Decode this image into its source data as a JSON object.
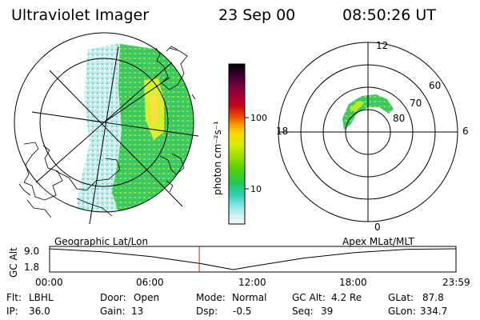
{
  "header": {
    "instrument": "Ultraviolet Imager",
    "date": "23 Sep 00",
    "time": "08:50:26 UT"
  },
  "left_panel": {
    "caption": "Geographic Lat/Lon"
  },
  "right_panel": {
    "caption": "Apex MLat/MLT",
    "mlt_labels": {
      "top": "12",
      "left": "18",
      "right": "6",
      "bottom": "0"
    },
    "lat_labels": [
      "60",
      "70",
      "80"
    ]
  },
  "colorbar": {
    "unit_label": "photon cm⁻²s⁻¹",
    "ticks": [
      "100",
      "10"
    ],
    "colors": [
      "#000000",
      "#3d0033",
      "#8a0040",
      "#c8001e",
      "#e85000",
      "#ff9a00",
      "#ffd400",
      "#d8ee00",
      "#9ae000",
      "#55d200",
      "#1ec850",
      "#30d2b8",
      "#8ae6e6",
      "#d4f2f2",
      "#f4f4f4"
    ]
  },
  "altitude_plot": {
    "ylabel": "GC Alt",
    "yticks": [
      "9.0",
      "1.8"
    ],
    "xticks": [
      "00:00",
      "06:00",
      "12:00",
      "18:00",
      "23:59"
    ],
    "current_time_marker": "08:50",
    "marker_color": "#cc2222",
    "chart_data": {
      "type": "line",
      "xlabel": "",
      "ylabel": "GC Alt",
      "x": [
        "00:00",
        "03:00",
        "06:00",
        "09:00",
        "10:50",
        "12:00",
        "15:00",
        "18:00",
        "21:00",
        "23:59"
      ],
      "values": [
        9.0,
        8.0,
        6.3,
        3.8,
        1.8,
        3.0,
        5.8,
        7.7,
        8.8,
        9.0
      ],
      "ylim": [
        1.8,
        9.0
      ]
    }
  },
  "status": {
    "flt_label": "Flt:",
    "flt_value": "LBHL",
    "ip_label": "IP:",
    "ip_value": "36.0",
    "door_label": "Door:",
    "door_value": "Open",
    "gain_label": "Gain:",
    "gain_value": "13",
    "mode_label": "Mode:",
    "mode_value": "Normal",
    "dsp_label": "Dsp:",
    "dsp_value": "-0.5",
    "gcalt_label": "GC Alt:",
    "gcalt_value": "4.2 Re",
    "seq_label": "Seq:",
    "seq_value": "39",
    "glat_label": "GLat:",
    "glat_value": "87.8",
    "glon_label": "GLon:",
    "glon_value": "334.7"
  }
}
